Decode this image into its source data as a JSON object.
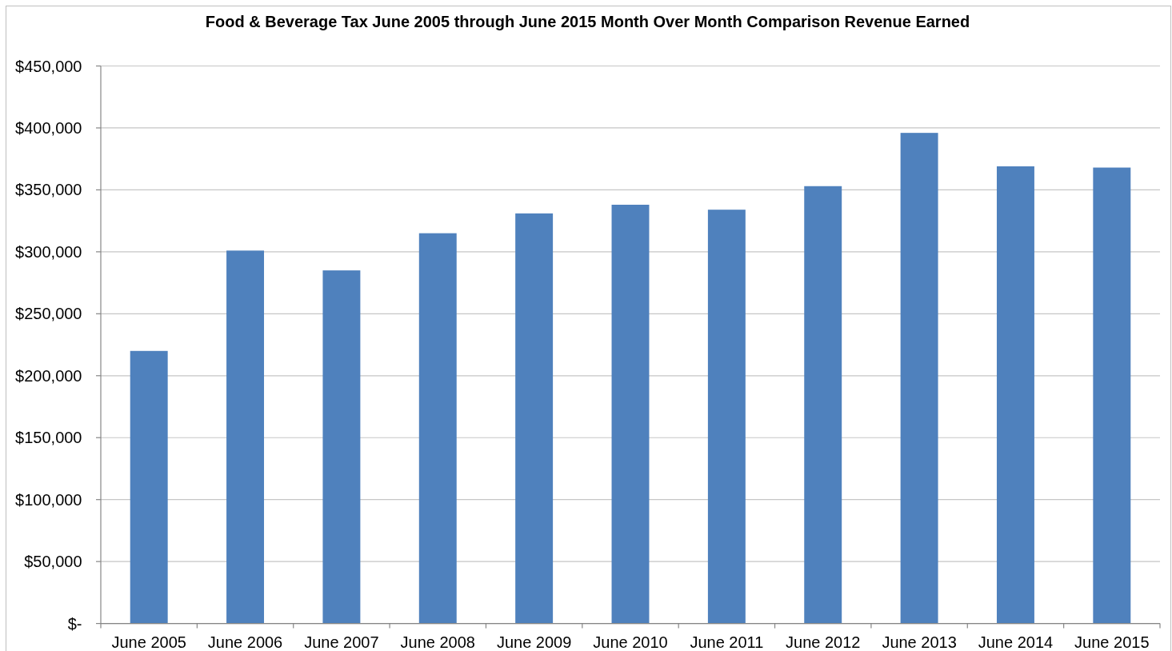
{
  "chart_data": {
    "type": "bar",
    "title": "Food & Beverage Tax June 2005 through June 2015 Month Over Month Comparison Revenue Earned",
    "categories": [
      "June 2005",
      "June 2006",
      "June 2007",
      "June 2008",
      "June 2009",
      "June 2010",
      "June 2011",
      "June 2012",
      "June 2013",
      "June 2014",
      "June 2015"
    ],
    "values": [
      220000,
      301000,
      285000,
      315000,
      331000,
      338000,
      334000,
      353000,
      396000,
      369000,
      368000
    ],
    "color": "#4f81bd",
    "ylim": [
      0,
      450000
    ],
    "yticks": [
      {
        "value": 0,
        "label": "$-"
      },
      {
        "value": 50000,
        "label": "$50,000"
      },
      {
        "value": 100000,
        "label": "$100,000"
      },
      {
        "value": 150000,
        "label": "$150,000"
      },
      {
        "value": 200000,
        "label": "$200,000"
      },
      {
        "value": 250000,
        "label": "$250,000"
      },
      {
        "value": 300000,
        "label": "$300,000"
      },
      {
        "value": 350000,
        "label": "$350,000"
      },
      {
        "value": 400000,
        "label": "$400,000"
      },
      {
        "value": 450000,
        "label": "$450,000"
      }
    ],
    "grid": "y"
  }
}
